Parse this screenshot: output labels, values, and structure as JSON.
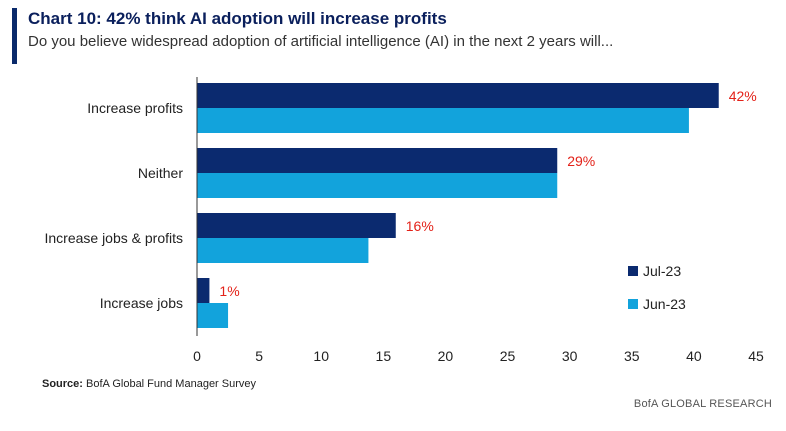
{
  "header": {
    "title": "Chart 10: 42% think AI adoption will increase profits",
    "subtitle": "Do you believe widespread adoption of artificial intelligence (AI) in the next 2 years will..."
  },
  "footer": {
    "source_label": "Source:",
    "source_text": "BofA Global Fund Manager Survey",
    "brand": "BofA GLOBAL RESEARCH"
  },
  "colors": {
    "jul23": "#0b2a6f",
    "jun23": "#12a3dc",
    "label_red": "#e32219"
  },
  "chart_data": {
    "type": "bar",
    "orientation": "horizontal",
    "categories": [
      "Increase profits",
      "Neither",
      "Increase jobs & profits",
      "Increase jobs"
    ],
    "series": [
      {
        "name": "Jul-23",
        "values": [
          42,
          29,
          16,
          1
        ],
        "labels": [
          "42%",
          "29%",
          "16%",
          "1%"
        ]
      },
      {
        "name": "Jun-23",
        "values": [
          39.6,
          29,
          13.8,
          2.5
        ]
      }
    ],
    "xlim": [
      0,
      45
    ],
    "xticks": [
      0,
      5,
      10,
      15,
      20,
      25,
      30,
      35,
      40,
      45
    ],
    "legend_position": "bottom-right",
    "grid": false
  }
}
